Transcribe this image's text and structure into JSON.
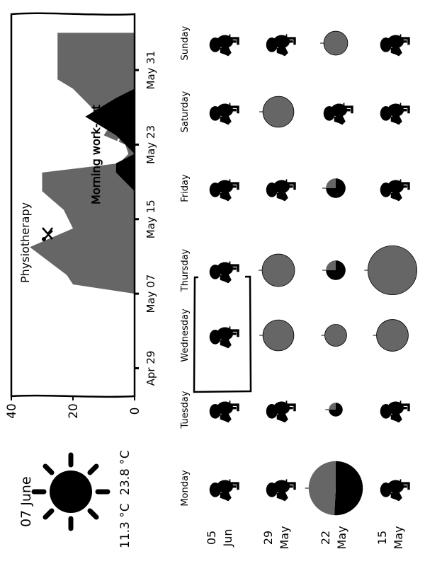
{
  "weather": {
    "date": "07 June",
    "temp_low": "11.3 °C",
    "temp_high": "23.8 °C",
    "icon": "sun-icon"
  },
  "weekdays": [
    "Monday",
    "Tuesday",
    "Wednesday",
    "Thursday",
    "Friday",
    "Saturday",
    "Sunday"
  ],
  "weeks": [
    {
      "day": "05",
      "month": "Jun"
    },
    {
      "day": "29",
      "month": "May"
    },
    {
      "day": "22",
      "month": "May"
    },
    {
      "day": "15",
      "month": "May"
    }
  ],
  "colors": {
    "physiotherapy": "#666666",
    "workout": "#000000",
    "ink": "#000000",
    "background": "#ffffff"
  },
  "grid": {
    "week_order": "top-to-bottom: 05 Jun, 29 May, 22 May, 15 May",
    "cells": [
      [
        "rest",
        "rest",
        "rest-highlighted",
        "rest",
        "rest",
        "rest",
        "rest"
      ],
      [
        "rest",
        "rest",
        "activity",
        "activity",
        "rest",
        "activity",
        "rest"
      ],
      [
        "activity",
        "activity",
        "activity",
        "activity",
        "activity",
        "rest",
        "activity"
      ],
      [
        "rest",
        "rest",
        "activity",
        "activity",
        "rest",
        "rest",
        "rest"
      ]
    ],
    "activity_pies": {
      "29 May": {
        "Wednesday": {
          "physiotherapy": 20,
          "workout": 0
        },
        "Thursday": {
          "physiotherapy": 22,
          "workout": 0
        },
        "Saturday": {
          "physiotherapy": 20,
          "workout": 0
        }
      },
      "22 May": {
        "Monday": {
          "physiotherapy": 30,
          "workout": 31
        },
        "Tuesday": {
          "physiotherapy": 1,
          "workout": 3
        },
        "Wednesday": {
          "physiotherapy": 10,
          "workout": 0
        },
        "Thursday": {
          "physiotherapy": 2,
          "workout": 6
        },
        "Friday": {
          "physiotherapy": 2,
          "workout": 6
        },
        "Sunday": {
          "physiotherapy": 12,
          "workout": 0
        }
      },
      "15 May": {
        "Wednesday": {
          "physiotherapy": 21,
          "workout": 0
        },
        "Thursday": {
          "physiotherapy": 50,
          "workout": 0
        }
      }
    }
  },
  "chart_data": {
    "type": "area",
    "title": "",
    "xlabel": "",
    "ylabel": "",
    "ylim": [
      0,
      40
    ],
    "yticks": [
      "0",
      "20",
      "40"
    ],
    "xticks": [
      "Apr 29",
      "May 07",
      "May 15",
      "May 23",
      "May 31"
    ],
    "xlim": [
      "Apr 26",
      "Jun 06"
    ],
    "series": [
      {
        "name": "Physiotherapy",
        "color": "#666666",
        "points": [
          {
            "x": "May 07",
            "y": 0
          },
          {
            "x": "May 08",
            "y": 20
          },
          {
            "x": "May 09",
            "y": 22
          },
          {
            "x": "May 12",
            "y": 34
          },
          {
            "x": "May 14",
            "y": 20
          },
          {
            "x": "May 16",
            "y": 23
          },
          {
            "x": "May 18",
            "y": 30
          },
          {
            "x": "May 20",
            "y": 30
          },
          {
            "x": "May 21",
            "y": 5
          },
          {
            "x": "May 22",
            "y": 2
          },
          {
            "x": "May 23",
            "y": 3
          },
          {
            "x": "May 24",
            "y": 10
          },
          {
            "x": "May 25",
            "y": 8
          },
          {
            "x": "May 29",
            "y": 20
          },
          {
            "x": "May 30",
            "y": 25
          },
          {
            "x": "Jun 04",
            "y": 25
          }
        ]
      },
      {
        "name": "Morning work-out",
        "color": "#000000",
        "points": [
          {
            "x": "May 18",
            "y": 0
          },
          {
            "x": "May 20",
            "y": 6
          },
          {
            "x": "May 21",
            "y": 6
          },
          {
            "x": "May 22",
            "y": 0
          },
          {
            "x": "May 24",
            "y": 6
          },
          {
            "x": "May 26",
            "y": 16
          },
          {
            "x": "May 28",
            "y": 6
          },
          {
            "x": "May 29",
            "y": 0
          }
        ]
      }
    ],
    "annotations": [
      {
        "text": "Physiotherapy",
        "icon": "physiotherapy-icon"
      },
      {
        "text": "Morning work-out",
        "icon": "workout-icon"
      }
    ]
  }
}
